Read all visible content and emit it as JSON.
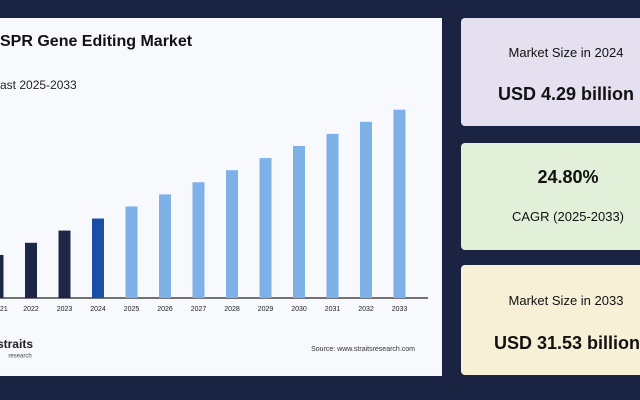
{
  "chart_data": {
    "type": "bar",
    "title": "SPR Gene Editing Market",
    "subtitle": "ast 2025-2033",
    "categories": [
      "21",
      "2022",
      "2023",
      "2024",
      "2025",
      "2026",
      "2027",
      "2028",
      "2029",
      "2030",
      "2031",
      "2032",
      "2033"
    ],
    "values": [
      2.2,
      2.75,
      3.44,
      4.29,
      5.35,
      6.68,
      8.34,
      10.41,
      12.99,
      16.21,
      20.23,
      25.25,
      31.53
    ],
    "colors": [
      "#1c2646",
      "#1c2646",
      "#1c2646",
      "#1a4fa8",
      "#7db1e8",
      "#7db1e8",
      "#7db1e8",
      "#7db1e8",
      "#7db1e8",
      "#7db1e8",
      "#7db1e8",
      "#7db1e8",
      "#7db1e8"
    ],
    "log_scale": true,
    "ylim": [
      1,
      35
    ],
    "source": "Source: www.straitsresearch.com",
    "logo": "straits",
    "logo_sub": "research"
  },
  "cards": [
    {
      "label": "Market Size in 2024",
      "value": "USD 4.29 billion"
    },
    {
      "value": "24.80%",
      "label": "CAGR (2025-2033)"
    },
    {
      "label": "Market Size in 2033",
      "value": "USD 31.53 billion"
    }
  ]
}
